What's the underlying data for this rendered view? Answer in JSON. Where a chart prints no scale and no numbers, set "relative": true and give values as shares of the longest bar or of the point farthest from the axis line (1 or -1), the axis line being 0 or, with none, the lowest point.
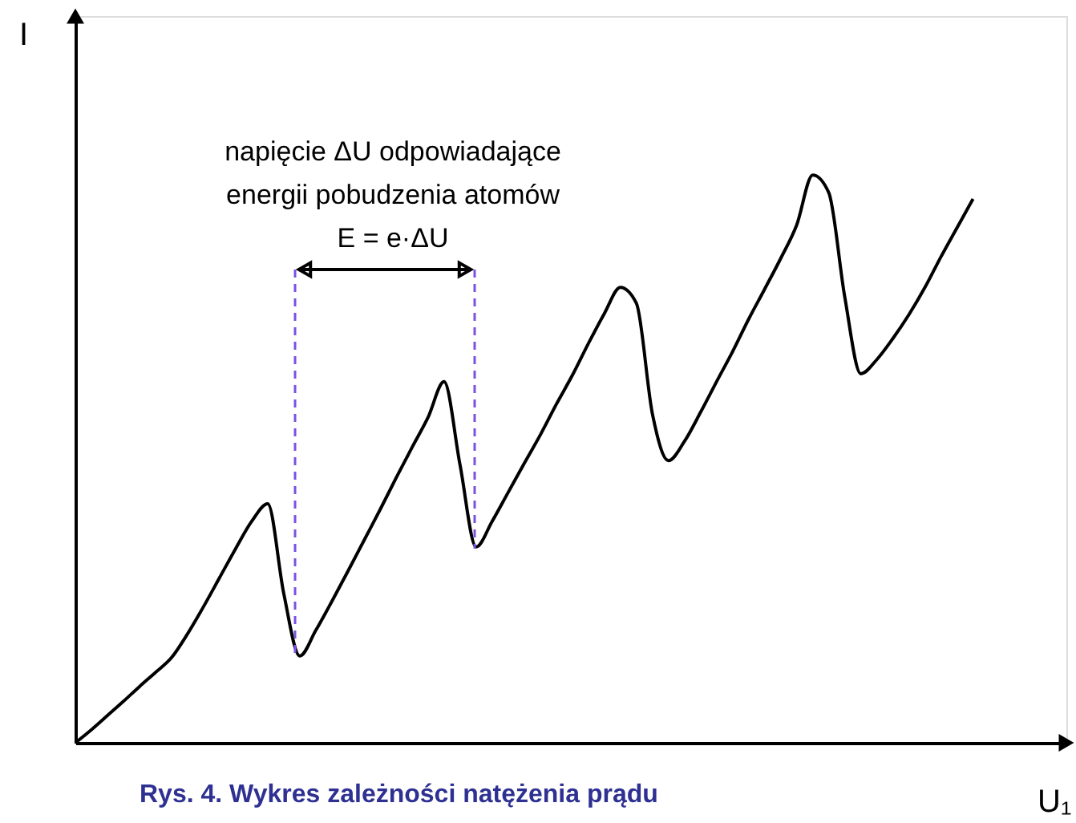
{
  "chart_data": {
    "type": "line",
    "relative": true,
    "xlabel": "U₁",
    "ylabel": "I",
    "color": "#000000",
    "line_style": "solid",
    "categories": [
      null,
      null,
      null,
      null,
      null,
      null,
      null,
      null,
      null,
      null,
      null,
      null,
      null,
      null,
      null,
      null,
      null,
      null,
      null,
      null,
      null,
      null,
      null,
      null,
      null,
      null,
      null,
      null,
      null,
      null,
      null,
      null,
      null,
      null,
      null,
      null,
      null,
      null,
      null,
      null,
      null,
      null,
      null,
      null,
      null,
      null,
      null,
      null,
      null,
      null,
      null,
      null,
      null,
      null,
      null,
      null,
      null
    ],
    "values": [
      0,
      0.023,
      0.048,
      0.073,
      0.099,
      0.124,
      0.15,
      0.192,
      0.24,
      0.291,
      0.342,
      0.39,
      0.421,
      0.263,
      0.153,
      0.198,
      0.249,
      0.302,
      0.356,
      0.41,
      0.466,
      0.52,
      0.573,
      0.636,
      0.489,
      0.345,
      0.39,
      0.441,
      0.492,
      0.542,
      0.596,
      0.647,
      0.703,
      0.756,
      0.802,
      0.774,
      0.579,
      0.497,
      0.531,
      0.582,
      0.636,
      0.689,
      0.746,
      0.799,
      0.853,
      0.912,
      1,
      0.969,
      0.785,
      0.65,
      0.675,
      0.712,
      0.754,
      0.802,
      0.856,
      0.907,
      0.958
    ],
    "annotations": [
      "napięcie ΔU odpowiadające\nenergii pobudzenia atomów\nE = e·ΔU",
      "Rys. 4. Wykres zależności natężenia prądu"
    ]
  }
}
